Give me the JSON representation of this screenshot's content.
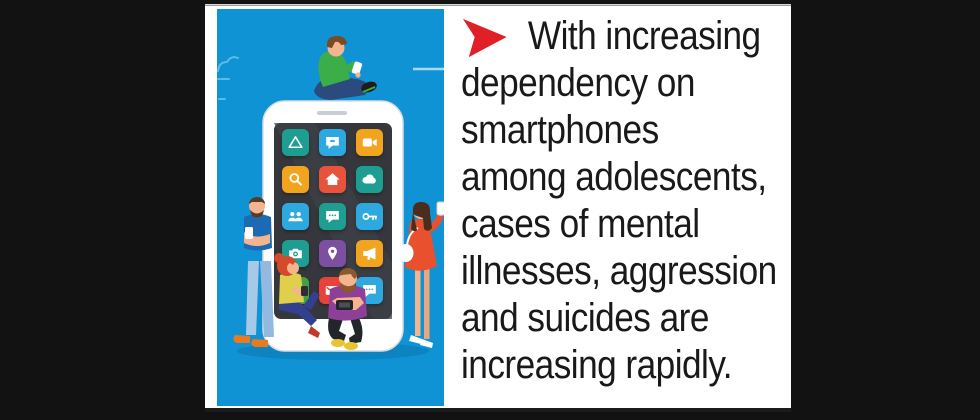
{
  "page": {
    "background_color": "#121212"
  },
  "card": {
    "background_color": "#ffffff"
  },
  "illustration": {
    "alt": "Flat illustration of five people using phones around a giant smartphone",
    "background_color": "#0f93d4",
    "ground_shadow_color": "#0d83c0",
    "phone": {
      "body_color": "#ffffff",
      "screen_color": "#35373c",
      "speaker_color": "#c9ced6"
    },
    "app_icons": [
      {
        "name": "drive",
        "glyph": "triangle",
        "color": "#1e9e92"
      },
      {
        "name": "messenger",
        "glyph": "phone-bubble",
        "color": "#2da9e0"
      },
      {
        "name": "video",
        "glyph": "video",
        "color": "#f2a41e"
      },
      {
        "name": "search",
        "glyph": "search",
        "color": "#f2a41e"
      },
      {
        "name": "home",
        "glyph": "home",
        "color": "#e8533c"
      },
      {
        "name": "cloud",
        "glyph": "cloud",
        "color": "#1e9e92"
      },
      {
        "name": "contacts",
        "glyph": "users",
        "color": "#2da9e0"
      },
      {
        "name": "chat",
        "glyph": "chat",
        "color": "#1e9e92"
      },
      {
        "name": "keys",
        "glyph": "key",
        "color": "#2da9e0"
      },
      {
        "name": "camera",
        "glyph": "camera",
        "color": "#1e9e92"
      },
      {
        "name": "maps",
        "glyph": "pin",
        "color": "#7c4fa0"
      },
      {
        "name": "promo",
        "glyph": "megaphone",
        "color": "#f2a41e"
      },
      {
        "name": "add",
        "glyph": "plus",
        "color": "#43a047"
      },
      {
        "name": "mail",
        "glyph": "mail",
        "color": "#e84338"
      },
      {
        "name": "social",
        "glyph": "chat",
        "color": "#2da9e0"
      }
    ]
  },
  "callout": {
    "bullet_color": "#e01f26",
    "text_color": "#191919",
    "text": "With increasing dependency on smartphones among adolescents, cases of mental illnesses, aggression and suicides are increasing rapidly.",
    "lines": [
      "With increasing",
      "dependency on",
      "smartphones",
      "among adolescents,",
      "cases of mental",
      "illnesses, aggression",
      "and suicides are",
      "increasing rapidly."
    ]
  }
}
